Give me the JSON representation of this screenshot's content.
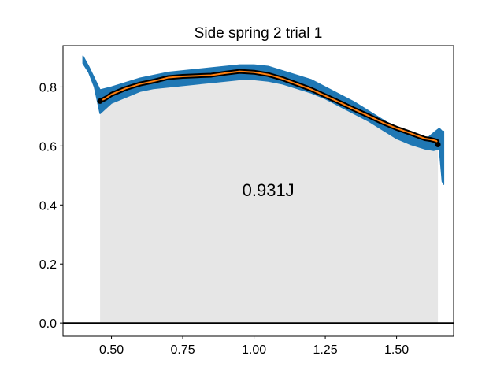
{
  "chart_data": {
    "type": "line",
    "title": "Side spring 2 trial 1",
    "xlabel": "",
    "ylabel": "",
    "xlim": [
      0.33,
      1.7
    ],
    "ylim": [
      -0.045,
      0.94
    ],
    "x_ticks": [
      0.5,
      0.75,
      1.0,
      1.25,
      1.5
    ],
    "x_tick_labels": [
      "0.50",
      "0.75",
      "1.00",
      "1.25",
      "1.50"
    ],
    "y_ticks": [
      0.0,
      0.2,
      0.4,
      0.6,
      0.8
    ],
    "y_tick_labels": [
      "0.0",
      "0.2",
      "0.4",
      "0.6",
      "0.8"
    ],
    "grid": false,
    "annotation": {
      "text": "0.931J",
      "x": 1.05,
      "y": 0.43
    },
    "shaded_region": {
      "x_start": 0.46,
      "x_end": 1.645,
      "color": "#e6e6e6"
    },
    "reference_line": {
      "y": 0.0,
      "color": "#000000"
    },
    "series": [
      {
        "style": "raw",
        "color": "#1f77b4",
        "x": [
          0.4,
          0.42,
          0.44,
          0.46,
          0.5,
          0.55,
          0.6,
          0.65,
          0.7,
          0.75,
          0.8,
          0.85,
          0.9,
          0.95,
          1.0,
          1.05,
          1.1,
          1.15,
          1.2,
          1.25,
          1.3,
          1.35,
          1.4,
          1.45,
          1.5,
          1.55,
          1.6,
          1.63,
          1.65,
          1.66,
          1.665
        ],
        "upper": [
          0.905,
          0.87,
          0.83,
          0.79,
          0.8,
          0.815,
          0.83,
          0.84,
          0.85,
          0.855,
          0.86,
          0.865,
          0.87,
          0.875,
          0.875,
          0.87,
          0.855,
          0.84,
          0.825,
          0.8,
          0.775,
          0.75,
          0.72,
          0.69,
          0.66,
          0.64,
          0.62,
          0.645,
          0.66,
          0.65,
          0.65
        ],
        "lower": [
          0.88,
          0.85,
          0.8,
          0.71,
          0.745,
          0.765,
          0.785,
          0.795,
          0.8,
          0.805,
          0.81,
          0.815,
          0.82,
          0.825,
          0.825,
          0.82,
          0.81,
          0.795,
          0.78,
          0.76,
          0.735,
          0.71,
          0.685,
          0.655,
          0.625,
          0.605,
          0.59,
          0.585,
          0.59,
          0.48,
          0.47
        ]
      },
      {
        "style": "fit",
        "color": "#ff7f0e",
        "outline_color": "#000000",
        "x": [
          0.46,
          0.48,
          0.5,
          0.55,
          0.6,
          0.65,
          0.7,
          0.75,
          0.8,
          0.85,
          0.9,
          0.95,
          1.0,
          1.05,
          1.1,
          1.15,
          1.2,
          1.25,
          1.3,
          1.35,
          1.4,
          1.45,
          1.5,
          1.55,
          1.6,
          1.62,
          1.64,
          1.645
        ],
        "y": [
          0.752,
          0.762,
          0.775,
          0.795,
          0.81,
          0.82,
          0.832,
          0.836,
          0.838,
          0.84,
          0.847,
          0.853,
          0.85,
          0.842,
          0.828,
          0.81,
          0.792,
          0.77,
          0.748,
          0.725,
          0.703,
          0.68,
          0.66,
          0.643,
          0.625,
          0.622,
          0.617,
          0.605
        ]
      }
    ]
  }
}
